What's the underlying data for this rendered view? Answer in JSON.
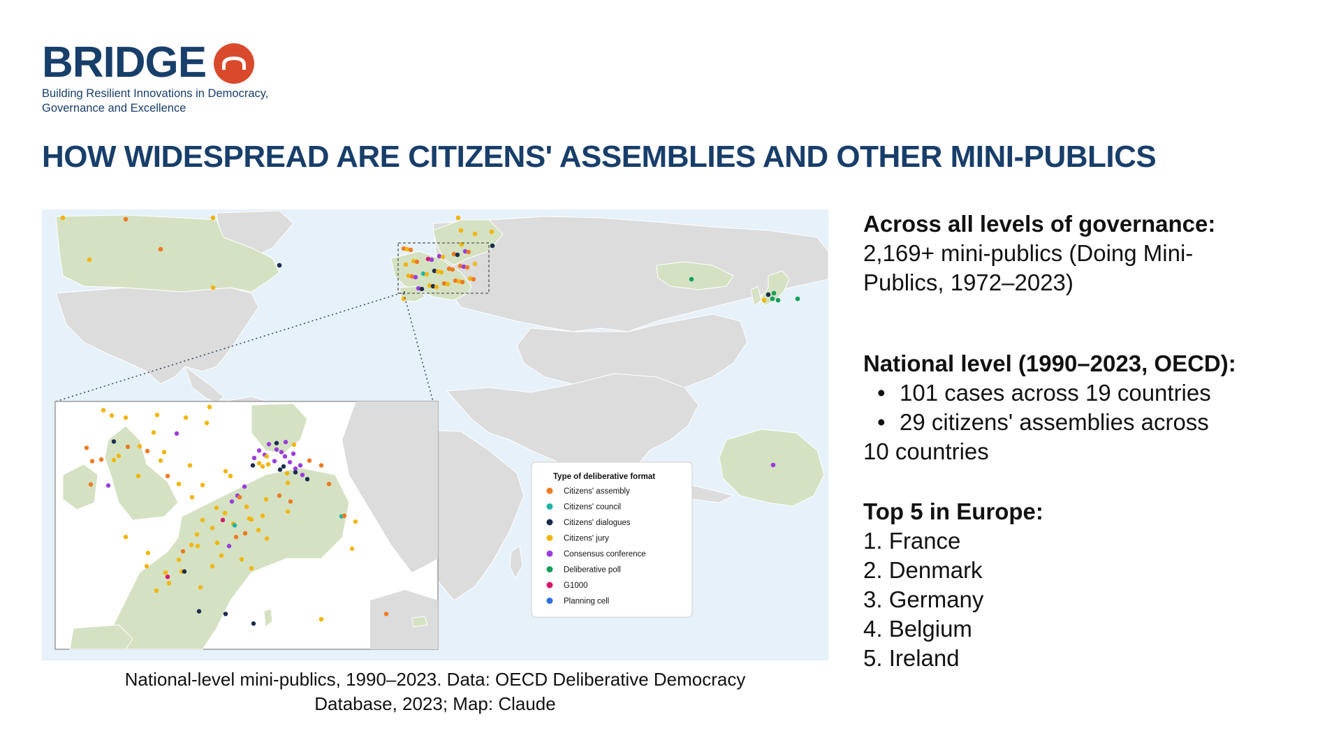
{
  "brand": {
    "name": "BRIDGE",
    "tagline_line1": "Building Resilient Innovations in Democracy,",
    "tagline_line2": "Governance and Excellence",
    "color_primary": "#183e6a",
    "color_accent": "#d94a2c",
    "mark_icon": "arch-circle-icon"
  },
  "headline": "HOW WIDESPREAD ARE CITIZENS' ASSEMBLIES AND OTHER MINI-PUBLICS",
  "map": {
    "legend_title": "Type of deliberative format",
    "legend": [
      {
        "label": "Citizens' assembly",
        "color": "#ee7a22"
      },
      {
        "label": "Citizens' council",
        "color": "#1fb3a8"
      },
      {
        "label": "Citizens' dialogues",
        "color": "#1b2c4d"
      },
      {
        "label": "Citizens' jury",
        "color": "#f2b50c"
      },
      {
        "label": "Consensus conference",
        "color": "#9b3ddb"
      },
      {
        "label": "Deliberative poll",
        "color": "#12a05a"
      },
      {
        "label": "G1000",
        "color": "#d8186c"
      },
      {
        "label": "Planning cell",
        "color": "#2b6fe0"
      }
    ],
    "caption_line1": "National-level mini-publics, 1990–2023. Data: OECD Deliberative Democracy",
    "caption_line2": "Database, 2023; Map: Claude"
  },
  "facts": {
    "governance_heading": "Across all levels of governance:",
    "governance_line1": "2,169+ mini-publics (Doing Mini-",
    "governance_line2": "Publics, 1972–2023)",
    "national_heading": "National level (1990–2023, OECD):",
    "national_bullet1": "101 cases across 19 countries",
    "national_bullet2": "29 citizens' assemblies across",
    "national_bullet2_cont": "10 countries",
    "top5_heading": "Top 5 in Europe:",
    "top5": [
      "1. France",
      "2. Denmark",
      "3. Germany",
      "4. Belgium",
      "5. Ireland"
    ]
  }
}
